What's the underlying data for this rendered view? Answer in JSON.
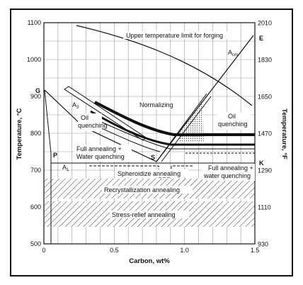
{
  "diagram": {
    "axes": {
      "left_title": "Temperature, °C",
      "right_title": "Temperature, °F",
      "bottom_title": "Carbon, wt%",
      "x_ticks": [
        {
          "value": 0,
          "label": "0"
        },
        {
          "value": 0.5,
          "label": "0.5"
        },
        {
          "value": 1.0,
          "label": "1.0"
        },
        {
          "value": 1.5,
          "label": "1.5"
        }
      ],
      "c_ticks": [
        {
          "value": 500,
          "label": "500"
        },
        {
          "value": 600,
          "label": "600"
        },
        {
          "value": 700,
          "label": "700"
        },
        {
          "value": 800,
          "label": "800"
        },
        {
          "value": 900,
          "label": "900"
        },
        {
          "value": 1000,
          "label": "1000"
        },
        {
          "value": 1100,
          "label": "1100"
        }
      ],
      "f_ticks": [
        {
          "value": 930,
          "label": "930"
        },
        {
          "value": 1110,
          "label": "1110"
        },
        {
          "value": 1290,
          "label": "1290"
        },
        {
          "value": 1470,
          "label": "1470"
        },
        {
          "value": 1650,
          "label": "1650"
        },
        {
          "value": 1830,
          "label": "1830"
        },
        {
          "value": 2010,
          "label": "2010"
        }
      ],
      "x_range": [
        0,
        1.5
      ],
      "y_range_c": [
        500,
        1100
      ]
    },
    "points": {
      "g": "G",
      "p": "P",
      "s": "S",
      "e": "E",
      "k": "K",
      "a1": "A",
      "a1_sub": "1",
      "a3": "A",
      "a3_sub": "3",
      "acm": "A",
      "acm_sub": "cm"
    },
    "regions": {
      "forging": "Upper temperature limit for forging",
      "normalizing": "Normalizing",
      "oil_left_1": "Oil",
      "oil_left_2": "quenching",
      "oil_right_1": "Oil",
      "oil_right_2": "quenching",
      "full_water_1": "Full annealing +",
      "full_water_2": "Water quenching",
      "full_anneal_1": "Full annealing +",
      "full_anneal_2": "water quenching",
      "spheroidize": "Spheroidize annealing",
      "recrystallization": "Recrystallization annealing",
      "stress_relief": "Stress-relief annealing"
    }
  }
}
